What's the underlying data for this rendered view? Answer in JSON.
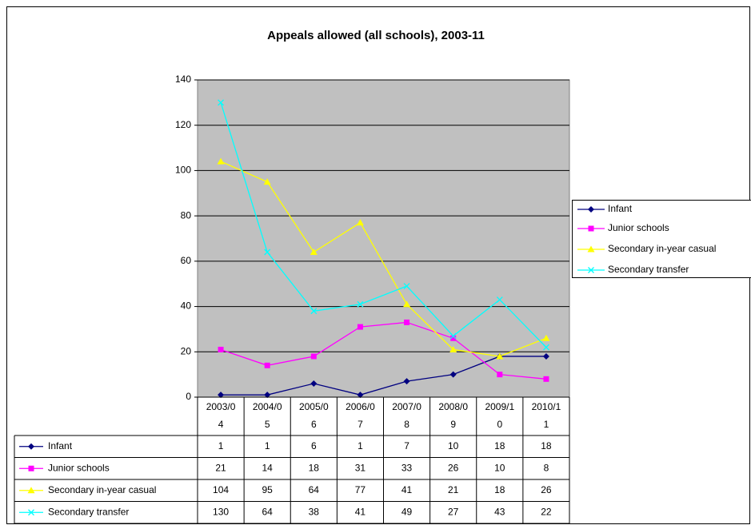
{
  "chart_data": {
    "type": "line",
    "title": "Appeals allowed (all schools), 2003-11",
    "categories": [
      "2003/04",
      "2004/05",
      "2005/06",
      "2006/07",
      "2007/08",
      "2008/09",
      "2009/10",
      "2010/11"
    ],
    "series": [
      {
        "name": "Infant",
        "color": "#000080",
        "marker": "diamond",
        "values": [
          1,
          1,
          6,
          1,
          7,
          10,
          18,
          18
        ]
      },
      {
        "name": "Junior schools",
        "color": "#ff00ff",
        "marker": "square",
        "values": [
          21,
          14,
          18,
          31,
          33,
          26,
          10,
          8
        ]
      },
      {
        "name": "Secondary in-year casual",
        "color": "#ffff00",
        "marker": "triangle",
        "values": [
          104,
          95,
          64,
          77,
          41,
          21,
          18,
          26
        ]
      },
      {
        "name": "Secondary transfer",
        "color": "#00ffff",
        "marker": "x",
        "values": [
          130,
          64,
          38,
          41,
          49,
          27,
          43,
          22
        ]
      }
    ],
    "ylim": [
      0,
      140
    ],
    "yticks": [
      0,
      20,
      40,
      60,
      80,
      100,
      120,
      140
    ],
    "grid": true,
    "legend": "right",
    "data_table": true
  }
}
